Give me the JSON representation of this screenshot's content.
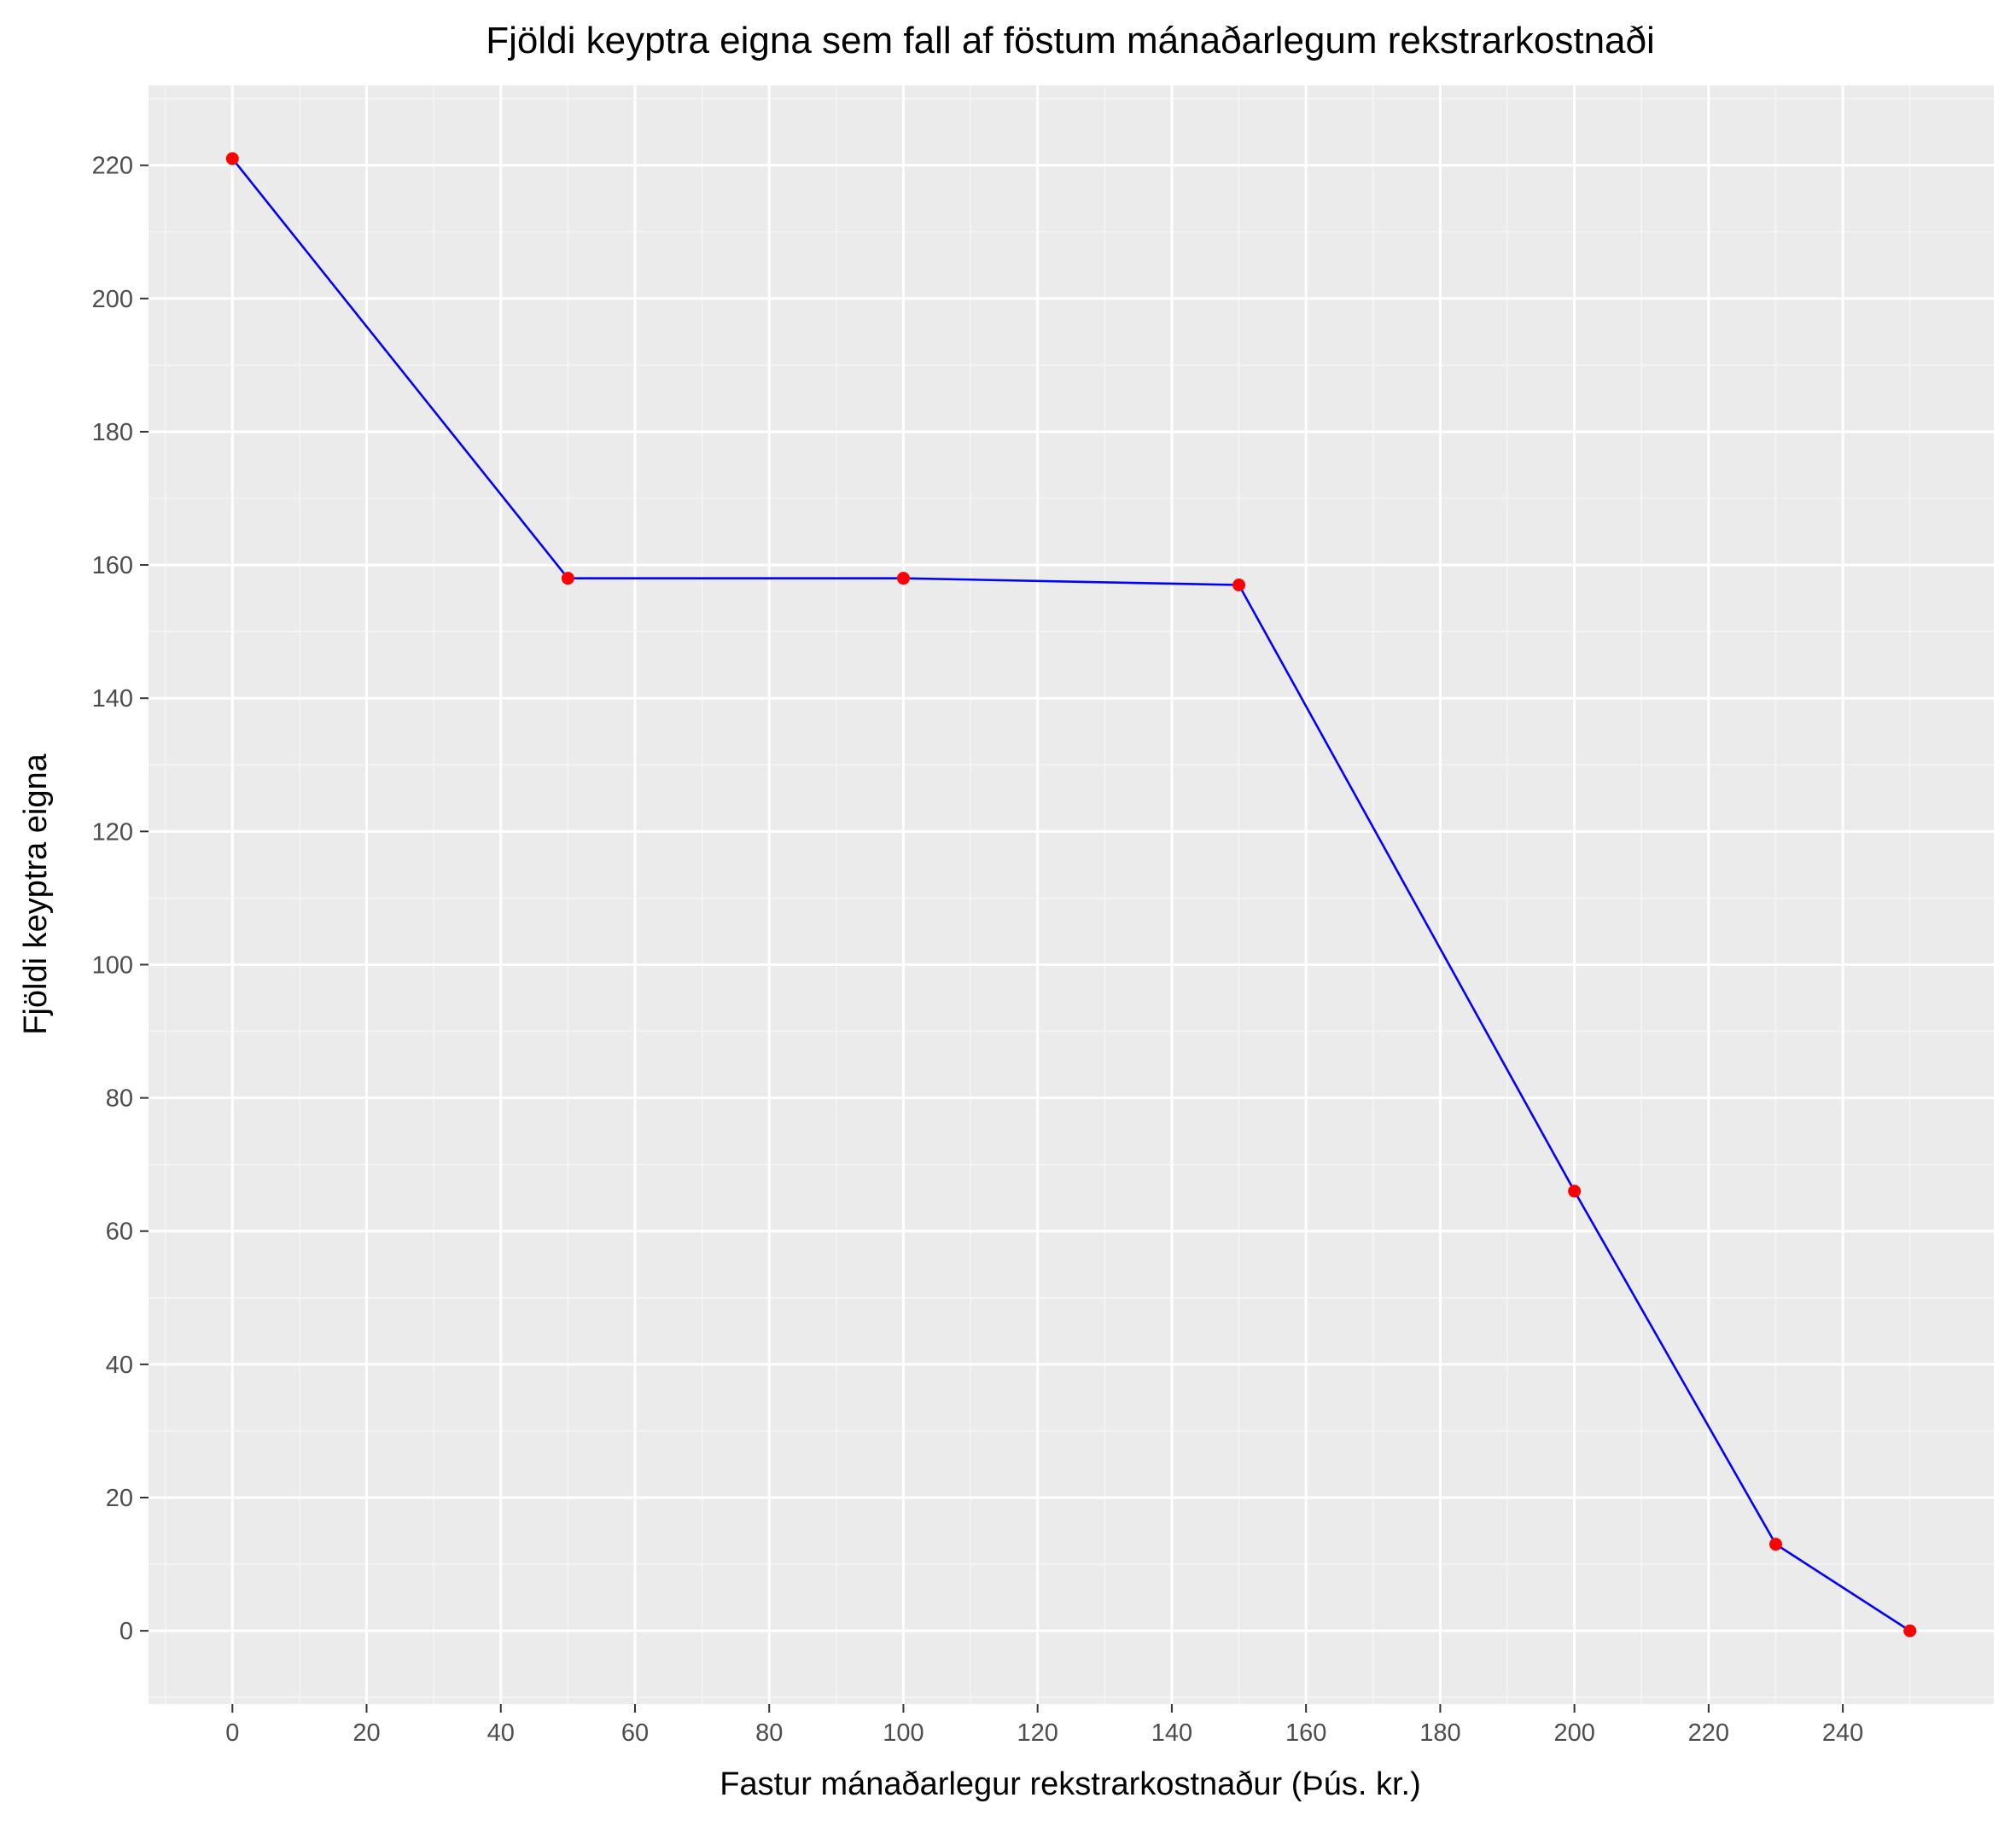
{
  "chart_data": {
    "type": "line",
    "title": "Fjöldi keyptra eigna sem fall af föstum mánaðarlegum rekstrarkostnaði",
    "xlabel": "Fastur mánaðarlegur rekstrarkostnaður (Þús. kr.)",
    "ylabel": "Fjöldi keyptra eigna",
    "xlim": [
      -12.5,
      262.5
    ],
    "ylim": [
      -11,
      232
    ],
    "x_ticks": [
      0,
      20,
      40,
      60,
      80,
      100,
      120,
      140,
      160,
      180,
      200,
      220,
      240
    ],
    "y_ticks": [
      0,
      20,
      40,
      60,
      80,
      100,
      120,
      140,
      160,
      180,
      200,
      220
    ],
    "x_tick_labels": [
      "0",
      "20",
      "40",
      "60",
      "80",
      "100",
      "120",
      "140",
      "160",
      "180",
      "200",
      "220",
      "240"
    ],
    "y_tick_labels": [
      "0",
      "20",
      "40",
      "60",
      "80",
      "100",
      "120",
      "140",
      "160",
      "180",
      "200",
      "220"
    ],
    "grid": true,
    "legend": "none",
    "series": [
      {
        "x": [
          0,
          50,
          100,
          150,
          200,
          230,
          250
        ],
        "y": [
          221,
          158,
          158,
          157,
          66,
          13,
          0
        ],
        "line_color": "#0000ff",
        "point_color": "#ff0000"
      }
    ],
    "colors": {
      "panel_background": "#ebebeb",
      "grid_major": "#ffffff",
      "grid_minor": "#f5f5f5",
      "tick_text": "#4d4d4d",
      "tick_mark": "#333333"
    }
  }
}
